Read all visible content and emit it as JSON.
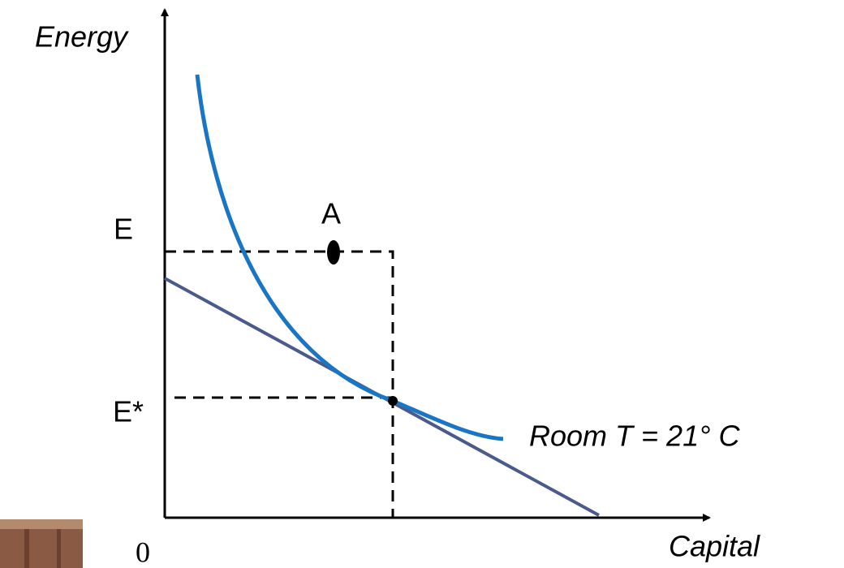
{
  "axes": {
    "y_label": "Energy",
    "x_label": "Capital",
    "origin": "0"
  },
  "levels": {
    "e": "E",
    "e_star": "E*"
  },
  "point": {
    "label": "A"
  },
  "curve": {
    "label": "Room T = 21° C"
  }
}
